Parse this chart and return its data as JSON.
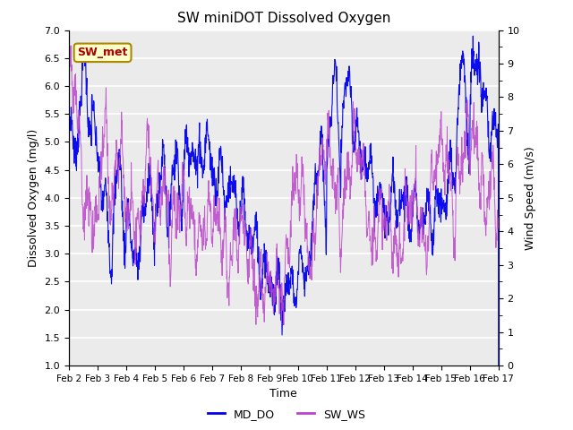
{
  "title": "SW miniDOT Dissolved Oxygen",
  "xlabel": "Time",
  "ylabel_left": "Dissolved Oxygen (mg/l)",
  "ylabel_right": "Wind Speed (m\\/s)",
  "ylim_left": [
    1.0,
    7.0
  ],
  "ylim_right": [
    0.0,
    10.0
  ],
  "xtick_labels": [
    "Feb 2",
    "Feb 3",
    "Feb 4",
    "Feb 5",
    "Feb 6",
    "Feb 7",
    "Feb 8",
    "Feb 9",
    "Feb 10",
    "Feb 11",
    "Feb 12",
    "Feb 13",
    "Feb 14",
    "Feb 15",
    "Feb 16",
    "Feb 17"
  ],
  "color_DO": "#0000EE",
  "color_WS": "#BB44CC",
  "legend_labels": [
    "MD_DO",
    "SW_WS"
  ],
  "annotation_text": "SW_met",
  "annotation_color": "#AA0000",
  "annotation_bg": "#FFFFCC",
  "annotation_edge": "#AA8800",
  "bg_color": "#EBEBEB",
  "grid_color": "#FFFFFF",
  "n_points": 1500,
  "figsize": [
    6.4,
    4.8
  ],
  "dpi": 100
}
